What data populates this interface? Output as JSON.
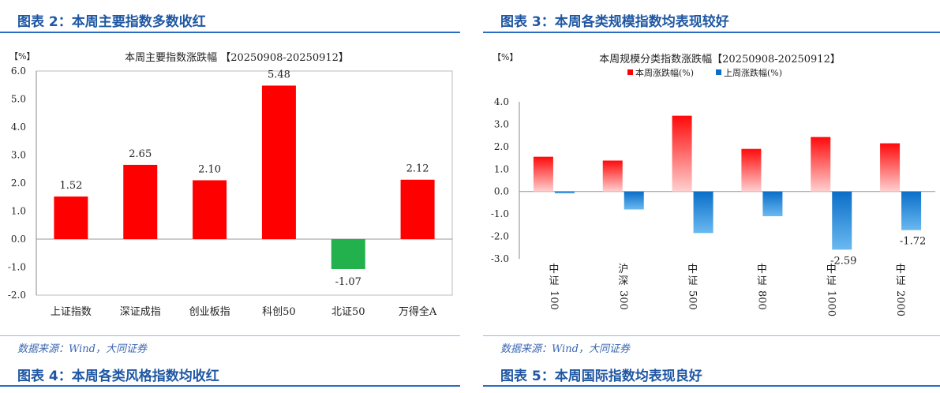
{
  "headers": {
    "fig2": "图表 2：本周主要指数多数收红",
    "fig3": "图表 3：本周各类规模指数均表现较好",
    "fig4": "图表 4：本周各类风格指数均收红",
    "fig5": "图表 5：本周国际指数均表现良好"
  },
  "source": {
    "left": "数据来源：Wind，大同证券",
    "right": "数据来源：Wind，大同证券"
  },
  "colors": {
    "header": "#1f57a3",
    "rule": "#2b6cc4",
    "red": "#ff0000",
    "green": "#22b14c",
    "blue": "#0a6ec8"
  },
  "chart_data": [
    {
      "type": "bar",
      "title": "本周主要指数涨跌幅 【20250908-20250912】",
      "ylabel": "【%】",
      "categories": [
        "上证指数",
        "深证成指",
        "创业板指",
        "科创50",
        "北证50",
        "万得全A"
      ],
      "values": [
        1.52,
        2.65,
        2.1,
        5.48,
        -1.07,
        2.12
      ],
      "value_labels": [
        "1.52",
        "2.65",
        "2.10",
        "5.48",
        "-1.07",
        "2.12"
      ],
      "ylim": [
        -2.0,
        6.0
      ],
      "yticks": [
        "6.0",
        "5.0",
        "4.0",
        "3.0",
        "2.0",
        "1.0",
        "0.0",
        "-1.0",
        "-2.0"
      ],
      "colors": {
        "positive": "#ff0000",
        "negative": "#22b14c"
      },
      "grid": false
    },
    {
      "type": "bar",
      "title": "本周规模分类指数涨跌幅【20250908-20250912】",
      "ylabel": "【%】",
      "categories": [
        "中证100",
        "沪深300",
        "中证500",
        "中证800",
        "中证1000",
        "中证2000"
      ],
      "series": [
        {
          "name": "本周涨跌幅(%)",
          "values": [
            1.55,
            1.38,
            3.38,
            1.9,
            2.43,
            2.15
          ]
        },
        {
          "name": "上周涨跌幅(%)",
          "values": [
            -0.08,
            -0.8,
            -1.85,
            -1.1,
            -2.59,
            -1.72
          ]
        }
      ],
      "data_labels": [
        {
          "series": 1,
          "index": 4,
          "text": "-2.59"
        },
        {
          "series": 1,
          "index": 5,
          "text": "-1.72"
        }
      ],
      "ylim": [
        -3.0,
        4.0
      ],
      "yticks": [
        "4.0",
        "3.0",
        "2.0",
        "1.0",
        "0.0",
        "-1.0",
        "-2.0",
        "-3.0"
      ],
      "legend": "top-center",
      "grid": false
    }
  ]
}
